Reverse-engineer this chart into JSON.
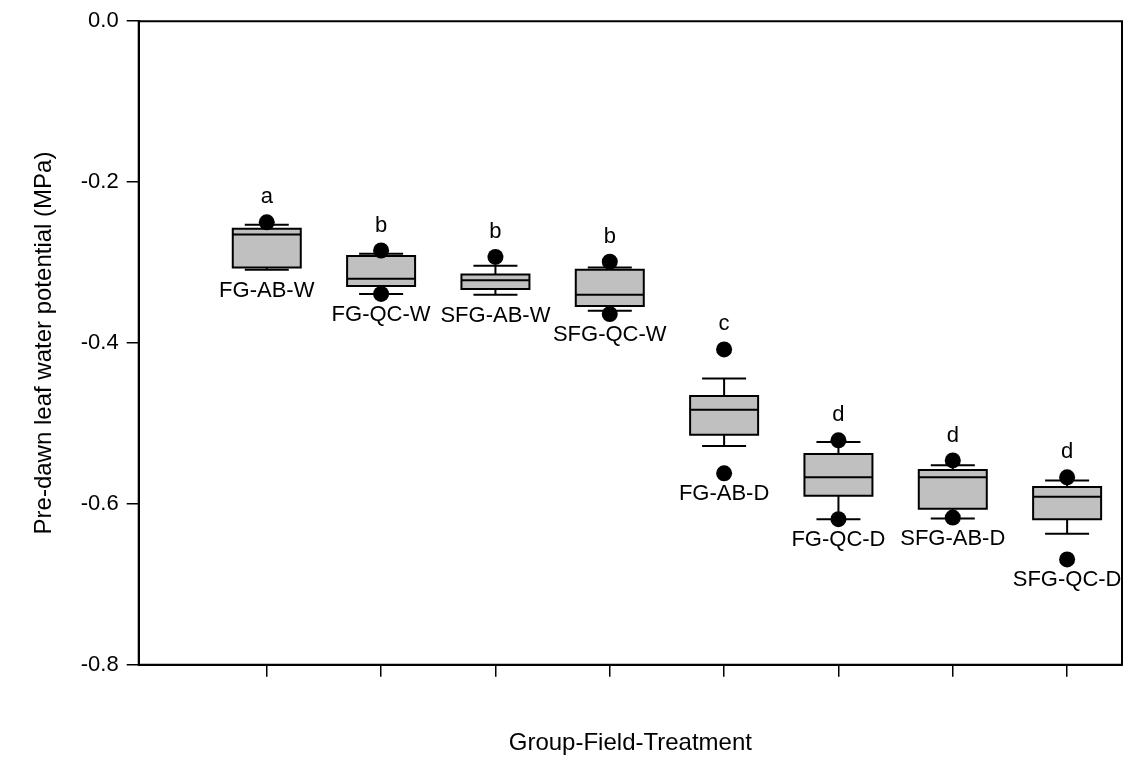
{
  "chart_data": {
    "type": "box",
    "xlabel": "Group-Field-Treatment",
    "ylabel": "Pre-dawn leaf water potential (MPa)",
    "categories": [
      "FG-AB-W",
      "FG-QC-W",
      "SFG-AB-W",
      "SFG-QC-W",
      "FG-AB-D",
      "FG-QC-D",
      "SFG-AB-D",
      "SFG-QC-D"
    ],
    "color": "#c0c0c0",
    "boxes": [
      {
        "low": -0.309,
        "q1": -0.306,
        "median": -0.265,
        "q3": -0.258,
        "high": -0.253,
        "outliers": [
          -0.25
        ]
      },
      {
        "low": -0.339,
        "q1": -0.329,
        "median": -0.32,
        "q3": -0.292,
        "high": -0.289,
        "outliers": [
          -0.285,
          -0.339
        ]
      },
      {
        "low": -0.34,
        "q1": -0.333,
        "median": -0.322,
        "q3": -0.315,
        "high": -0.304,
        "outliers": [
          -0.293
        ]
      },
      {
        "low": -0.36,
        "q1": -0.354,
        "median": -0.34,
        "q3": -0.309,
        "high": -0.306,
        "outliers": [
          -0.299,
          -0.364
        ]
      },
      {
        "low": -0.528,
        "q1": -0.514,
        "median": -0.483,
        "q3": -0.466,
        "high": -0.444,
        "outliers": [
          -0.408,
          -0.562
        ]
      },
      {
        "low": -0.619,
        "q1": -0.59,
        "median": -0.567,
        "q3": -0.538,
        "high": -0.523,
        "outliers": [
          -0.521,
          -0.619
        ]
      },
      {
        "low": -0.618,
        "q1": -0.606,
        "median": -0.567,
        "q3": -0.558,
        "high": -0.552,
        "outliers": [
          -0.546,
          -0.617
        ]
      },
      {
        "low": -0.637,
        "q1": -0.619,
        "median": -0.591,
        "q3": -0.579,
        "high": -0.571,
        "outliers": [
          -0.567,
          -0.669
        ]
      }
    ],
    "ylim": [
      -0.8,
      0
    ],
    "yticks": [
      -0.8,
      -0.6,
      -0.4,
      -0.2,
      {
        "value": 0,
        "label": "0.0"
      }
    ],
    "grid": false,
    "marker": "circle",
    "annotations": [
      "a",
      "b",
      "b",
      "b",
      "c",
      "d",
      "d",
      "d"
    ]
  }
}
